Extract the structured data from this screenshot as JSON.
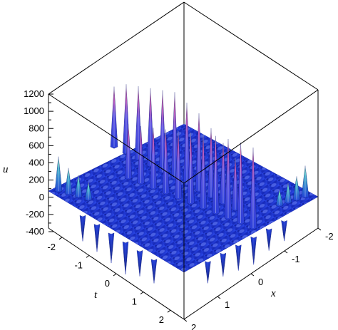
{
  "chart_data": {
    "type": "surface3d",
    "title": "",
    "axes": {
      "x": {
        "label": "x",
        "range": [
          -2,
          2
        ],
        "ticks": [
          "-2",
          "-1",
          "0",
          "1",
          "2"
        ]
      },
      "t": {
        "label": "t",
        "range": [
          -2.5,
          2.5
        ],
        "ticks": [
          "-2",
          "-1",
          "0",
          "1",
          "2"
        ]
      },
      "u": {
        "label": "u",
        "range": [
          -400,
          1200
        ],
        "ticks": [
          "-400",
          "-300",
          "-200",
          "-100",
          "0",
          "100",
          "200",
          "300",
          "400",
          "500",
          "600",
          "700",
          "800",
          "900",
          "1000",
          "1100",
          "1200"
        ]
      }
    },
    "surface": {
      "baseline_u": 0,
      "ridge_peak_u": [
        1200,
        1200,
        1180,
        1150,
        1100,
        1050,
        1000,
        950,
        900,
        850,
        800
      ],
      "secondary_peak_u": [
        600,
        700,
        800,
        900,
        950,
        1000,
        950,
        900,
        850,
        800,
        700
      ],
      "side_peak_u": [
        400,
        300,
        250,
        200
      ],
      "trough_u": [
        -300,
        -320,
        -350,
        -380,
        -300,
        -280
      ]
    },
    "colors": {
      "surface": "#1d33cf",
      "peak": "#e22fa0",
      "low": "#44e0a0",
      "frame": "#000000"
    }
  }
}
